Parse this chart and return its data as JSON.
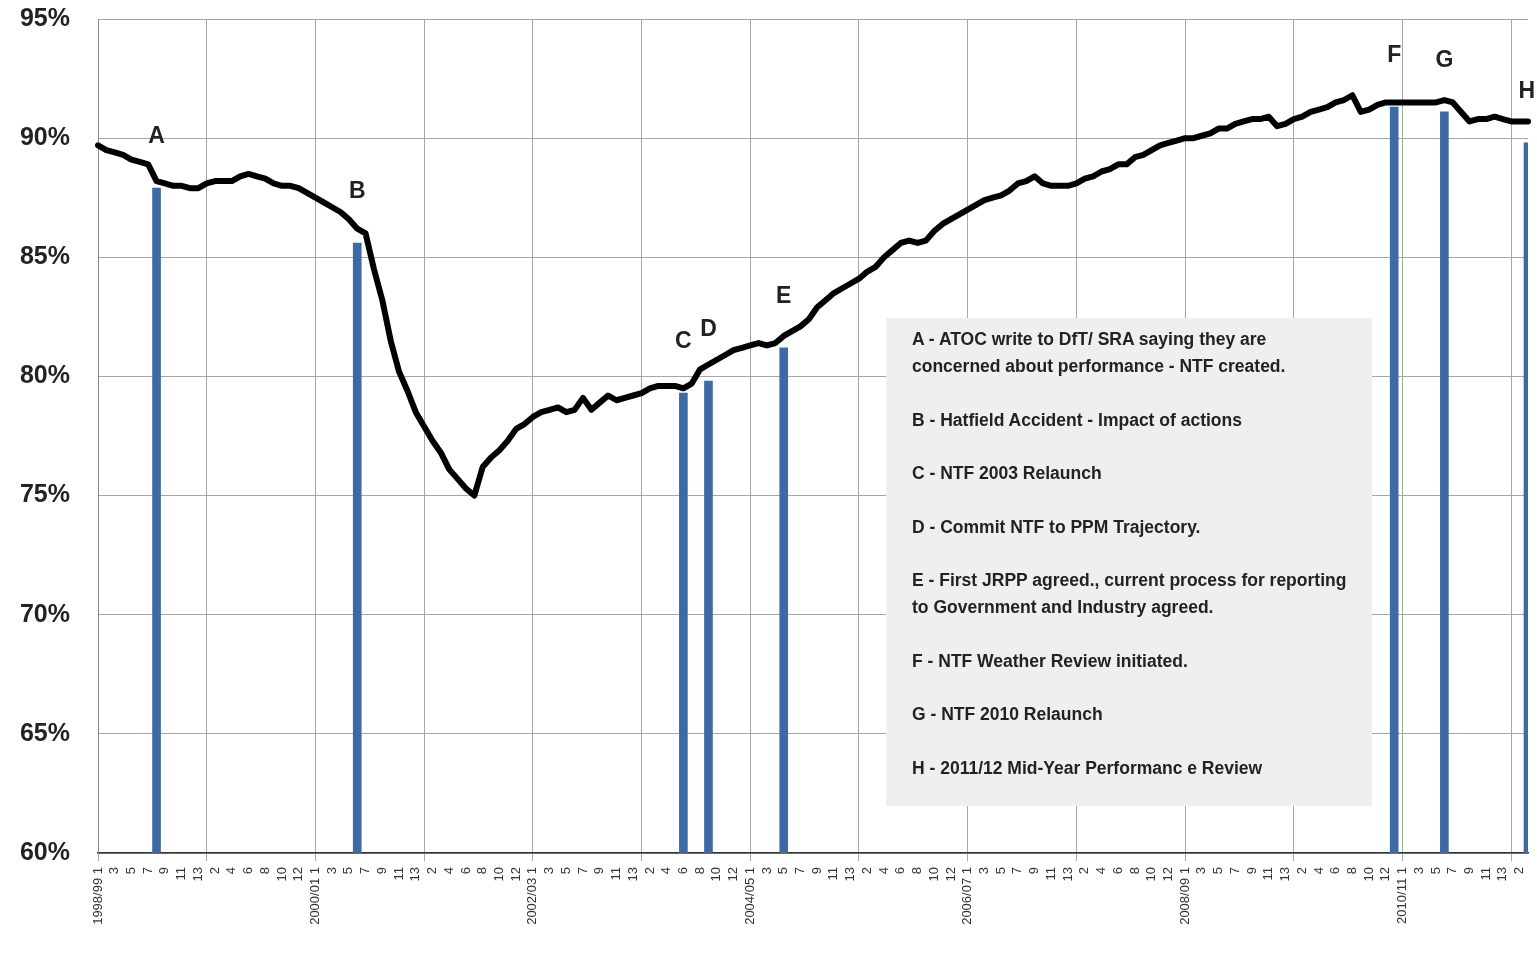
{
  "chart_data": {
    "type": "line",
    "categories": [
      "1998/99 1",
      null,
      "3",
      null,
      "5",
      null,
      "7",
      null,
      "9",
      null,
      "11",
      null,
      "13",
      null,
      "2",
      null,
      "4",
      null,
      "6",
      null,
      "8",
      null,
      "10",
      null,
      "12",
      null,
      "2000/01 1",
      null,
      "3",
      null,
      "5",
      null,
      "7",
      null,
      "9",
      null,
      "11",
      null,
      "13",
      null,
      "2",
      null,
      "4",
      null,
      "6",
      null,
      "8",
      null,
      "10",
      null,
      "12",
      null,
      "2002/03 1",
      null,
      "3",
      null,
      "5",
      null,
      "7",
      null,
      "9",
      null,
      "11",
      null,
      "13",
      null,
      "2",
      null,
      "4",
      null,
      "6",
      null,
      "8",
      null,
      "10",
      null,
      "12",
      null,
      "2004/05 1",
      null,
      "3",
      null,
      "5",
      null,
      "7",
      null,
      "9",
      null,
      "11",
      null,
      "13",
      null,
      "2",
      null,
      "4",
      null,
      "6",
      null,
      "8",
      null,
      "10",
      null,
      "12",
      null,
      "2006/07 1",
      null,
      "3",
      null,
      "5",
      null,
      "7",
      null,
      "9",
      null,
      "11",
      null,
      "13",
      null,
      "2",
      null,
      "4",
      null,
      "6",
      null,
      "8",
      null,
      "10",
      null,
      "12",
      null,
      "2008/09 1",
      null,
      "3",
      null,
      "5",
      null,
      "7",
      null,
      "9",
      null,
      "11",
      null,
      "13",
      null,
      "2",
      null,
      "4",
      null,
      "6",
      null,
      "8",
      null,
      "10",
      null,
      "12",
      null,
      "2010/11 1",
      null,
      "3",
      null,
      "5",
      null,
      "7",
      null,
      "9",
      null,
      "11",
      null,
      "13",
      null,
      "2",
      null
    ],
    "series": [
      {
        "color": "#000000",
        "values": [
          89.7,
          89.5,
          89.4,
          89.3,
          89.1,
          89.0,
          88.9,
          88.2,
          88.1,
          88.0,
          88.0,
          87.9,
          87.9,
          88.1,
          88.2,
          88.2,
          88.2,
          88.4,
          88.5,
          88.4,
          88.3,
          88.1,
          88.0,
          88.0,
          87.9,
          87.7,
          87.5,
          87.3,
          87.1,
          86.9,
          86.6,
          86.2,
          86.0,
          84.5,
          83.2,
          81.5,
          80.2,
          79.4,
          78.5,
          77.9,
          77.3,
          76.8,
          76.1,
          75.7,
          75.3,
          75.0,
          76.2,
          76.6,
          76.9,
          77.3,
          77.8,
          78.0,
          78.3,
          78.5,
          78.6,
          78.7,
          78.5,
          78.6,
          79.1,
          78.6,
          78.9,
          79.2,
          79.0,
          79.1,
          79.2,
          79.3,
          79.5,
          79.6,
          79.6,
          79.6,
          79.5,
          79.7,
          80.3,
          80.5,
          80.7,
          80.9,
          81.1,
          81.2,
          81.3,
          81.4,
          81.3,
          81.4,
          81.7,
          81.9,
          82.1,
          82.4,
          82.9,
          83.2,
          83.5,
          83.7,
          83.9,
          84.1,
          84.4,
          84.6,
          85.0,
          85.3,
          85.6,
          85.7,
          85.6,
          85.7,
          86.1,
          86.4,
          86.6,
          86.8,
          87.0,
          87.2,
          87.4,
          87.5,
          87.6,
          87.8,
          88.1,
          88.2,
          88.4,
          88.1,
          88.0,
          88.0,
          88.0,
          88.1,
          88.3,
          88.4,
          88.6,
          88.7,
          88.9,
          88.9,
          89.2,
          89.3,
          89.5,
          89.7,
          89.8,
          89.9,
          90.0,
          90.0,
          90.1,
          90.2,
          90.4,
          90.4,
          90.6,
          90.7,
          90.8,
          90.8,
          90.9,
          90.5,
          90.6,
          90.8,
          90.9,
          91.1,
          91.2,
          91.3,
          91.5,
          91.6,
          91.8,
          91.1,
          91.2,
          91.4,
          91.5,
          91.5,
          91.5,
          91.5,
          91.5,
          91.5,
          91.5,
          91.6,
          91.5,
          91.1,
          90.7,
          90.8,
          90.8,
          90.9,
          90.8,
          90.7,
          90.7,
          90.7
        ]
      },
      {
        "type": "bar",
        "color": "#3d6aa5",
        "values": [
          null,
          null,
          null,
          null,
          null,
          null,
          null,
          87.9,
          null,
          null,
          null,
          null,
          null,
          null,
          null,
          null,
          null,
          null,
          null,
          null,
          null,
          null,
          null,
          null,
          null,
          null,
          null,
          null,
          null,
          null,
          null,
          85.6,
          null,
          null,
          null,
          null,
          null,
          null,
          null,
          null,
          null,
          null,
          null,
          null,
          null,
          null,
          null,
          null,
          null,
          null,
          null,
          null,
          null,
          null,
          null,
          null,
          null,
          null,
          null,
          null,
          null,
          null,
          null,
          null,
          null,
          null,
          null,
          null,
          null,
          null,
          79.3,
          null,
          null,
          79.8,
          null,
          null,
          null,
          null,
          null,
          null,
          null,
          null,
          81.2,
          null,
          null,
          null,
          null,
          null,
          null,
          null,
          null,
          null,
          null,
          null,
          null,
          null,
          null,
          null,
          null,
          null,
          null,
          null,
          null,
          null,
          null,
          null,
          null,
          null,
          null,
          null,
          null,
          null,
          null,
          null,
          null,
          null,
          null,
          null,
          null,
          null,
          null,
          null,
          null,
          null,
          null,
          null,
          null,
          null,
          null,
          null,
          null,
          null,
          null,
          null,
          null,
          null,
          null,
          null,
          null,
          null,
          null,
          null,
          null,
          null,
          null,
          null,
          null,
          null,
          null,
          null,
          null,
          null,
          null,
          null,
          null,
          91.3,
          null,
          null,
          null,
          null,
          null,
          91.1,
          null,
          null,
          null,
          null,
          null,
          null,
          null,
          null,
          null,
          89.8
        ],
        "value_labels": [
          null,
          null,
          null,
          null,
          null,
          null,
          null,
          "A",
          null,
          null,
          null,
          null,
          null,
          null,
          null,
          null,
          null,
          null,
          null,
          null,
          null,
          null,
          null,
          null,
          null,
          null,
          null,
          null,
          null,
          null,
          null,
          "B",
          null,
          null,
          null,
          null,
          null,
          null,
          null,
          null,
          null,
          null,
          null,
          null,
          null,
          null,
          null,
          null,
          null,
          null,
          null,
          null,
          null,
          null,
          null,
          null,
          null,
          null,
          null,
          null,
          null,
          null,
          null,
          null,
          null,
          null,
          null,
          null,
          null,
          null,
          "C",
          null,
          null,
          "D",
          null,
          null,
          null,
          null,
          null,
          null,
          null,
          null,
          "E",
          null,
          null,
          null,
          null,
          null,
          null,
          null,
          null,
          null,
          null,
          null,
          null,
          null,
          null,
          null,
          null,
          null,
          null,
          null,
          null,
          null,
          null,
          null,
          null,
          null,
          null,
          null,
          null,
          null,
          null,
          null,
          null,
          null,
          null,
          null,
          null,
          null,
          null,
          null,
          null,
          null,
          null,
          null,
          null,
          null,
          null,
          null,
          null,
          null,
          null,
          null,
          null,
          null,
          null,
          null,
          null,
          null,
          null,
          null,
          null,
          null,
          null,
          null,
          null,
          null,
          null,
          null,
          null,
          null,
          null,
          null,
          null,
          "F",
          null,
          null,
          null,
          null,
          null,
          "G",
          null,
          null,
          null,
          null,
          null,
          null,
          null,
          null,
          null,
          "H"
        ]
      }
    ],
    "ylim": [
      60,
      95
    ],
    "yticks": [
      {
        "value": 60,
        "label": "60%"
      },
      {
        "value": 65,
        "label": "65%"
      },
      {
        "value": 70,
        "label": "70%"
      },
      {
        "value": 75,
        "label": "75%"
      },
      {
        "value": 80,
        "label": "80%"
      },
      {
        "value": 85,
        "label": "85%"
      },
      {
        "value": 90,
        "label": "90%"
      },
      {
        "value": 95,
        "label": "95%"
      }
    ],
    "grid": true,
    "annotations": [
      "A  -  ATOC write to DfT/ SRA saying they are concerned about performance  - NTF created.",
      "B  -  Hatfield Accident - Impact of actions",
      "C  -  NTF 2003 Relaunch",
      "D  -  Commit NTF to PPM Trajectory.",
      "E  -  First JRPP agreed., current process for reporting to Government and Industry agreed.",
      "F  -  NTF Weather Review initiated.",
      "G  -  NTF 2010 Relaunch",
      "H -  2011/12 Mid-Year Performanc e Review"
    ]
  }
}
